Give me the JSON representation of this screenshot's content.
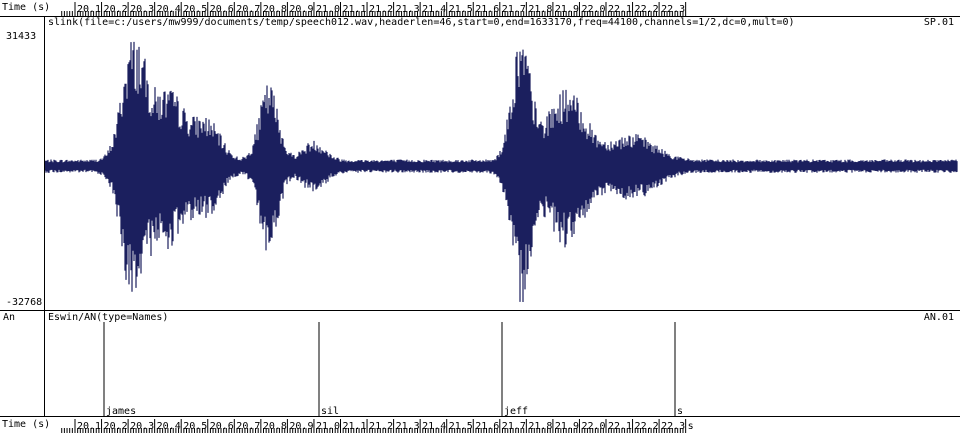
{
  "time_axis": {
    "label": "Time (s)",
    "ticks": [
      "20.1",
      "20.2",
      "20.3",
      "20.4",
      "20.5",
      "20.6",
      "20.7",
      "20.8",
      "20.9",
      "21.0",
      "21.1",
      "21.2",
      "21.3",
      "21.4",
      "21.5",
      "21.6",
      "21.7",
      "21.8",
      "21.9",
      "22.0",
      "22.1",
      "22.2",
      "22.3"
    ],
    "bottom_ticks": [
      "20.1",
      "20.2",
      "20.3",
      "20.4",
      "20.5",
      "20.6",
      "20.7",
      "20.8",
      "20.9",
      "21.0",
      "21.1",
      "21.2",
      "21.3",
      "21.4",
      "21.5",
      "21.6",
      "21.7",
      "21.8",
      "21.9",
      "22.0",
      "22.1",
      "22.2",
      "22.3",
      "s"
    ]
  },
  "waveform": {
    "header": "slink(file=c:/users/mw999/documents/temp/speech012.wav,headerlen=46,start=0,end=1633170,freq=44100,channels=1/2,dc=0,mult=0)",
    "name": "SP.01",
    "ymax_label": "31433",
    "ymin_label": "-32768",
    "color": "#1b1f5e"
  },
  "annotation": {
    "row_label": "An",
    "header": "Eswin/AN(type=Names)",
    "name": "AN.01",
    "marks": [
      {
        "label": "james",
        "time": 20.21
      },
      {
        "label": "sil",
        "time": 21.02
      },
      {
        "label": "jeff",
        "time": 21.71
      },
      {
        "label": "s",
        "time": 22.36
      }
    ]
  },
  "colors": {
    "wave": "#1b1f5e",
    "line": "#000000"
  }
}
